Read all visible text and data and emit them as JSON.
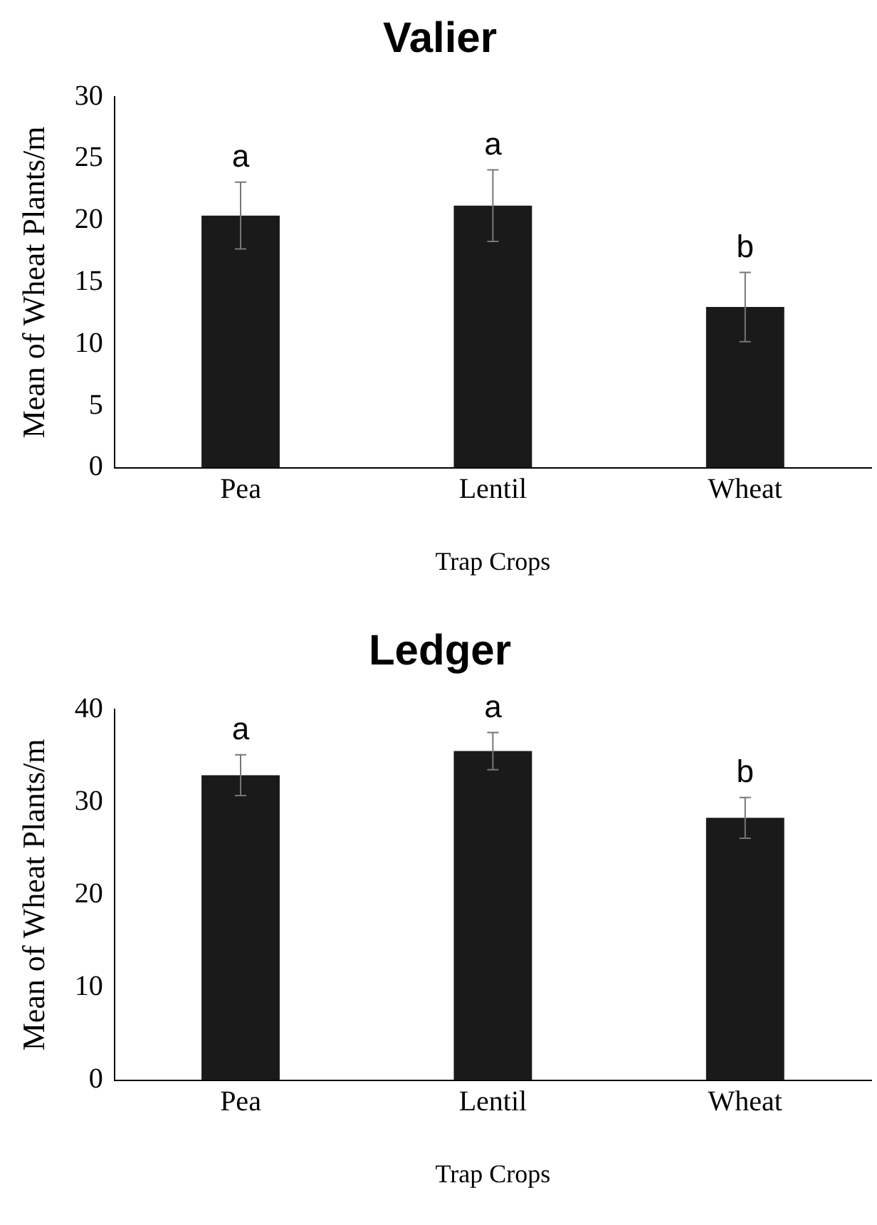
{
  "chart_data": [
    {
      "type": "bar",
      "title": "Valier",
      "xlabel": "Trap Crops",
      "ylabel": "Mean of Wheat Plants/m",
      "categories": [
        "Pea",
        "Lentil",
        "Wheat"
      ],
      "color": "#1a1a1a",
      "values": [
        20.4,
        21.2,
        13.0
      ],
      "errors": [
        2.7,
        2.9,
        2.8
      ],
      "ylim": [
        0,
        30
      ],
      "yticks": [
        0,
        5,
        10,
        15,
        20,
        25,
        30
      ],
      "grid": false,
      "legend": false,
      "annotations": [
        {
          "text": "a",
          "x": "Pea",
          "y": 23.1
        },
        {
          "text": "a",
          "x": "Lentil",
          "y": 24.1
        },
        {
          "text": "b",
          "x": "Wheat",
          "y": 15.8
        }
      ]
    },
    {
      "type": "bar",
      "title": "Ledger",
      "xlabel": "Trap Crops",
      "ylabel": "Mean of Wheat Plants/m",
      "categories": [
        "Pea",
        "Lentil",
        "Wheat"
      ],
      "color": "#1a1a1a",
      "values": [
        32.9,
        35.5,
        28.3
      ],
      "errors": [
        2.2,
        2.0,
        2.2
      ],
      "ylim": [
        0,
        40
      ],
      "yticks": [
        0,
        10,
        20,
        30,
        40
      ],
      "grid": false,
      "legend": false,
      "annotations": [
        {
          "text": "a",
          "x": "Pea",
          "y": 35.1
        },
        {
          "text": "a",
          "x": "Lentil",
          "y": 37.5
        },
        {
          "text": "b",
          "x": "Wheat",
          "y": 30.5
        }
      ]
    }
  ]
}
